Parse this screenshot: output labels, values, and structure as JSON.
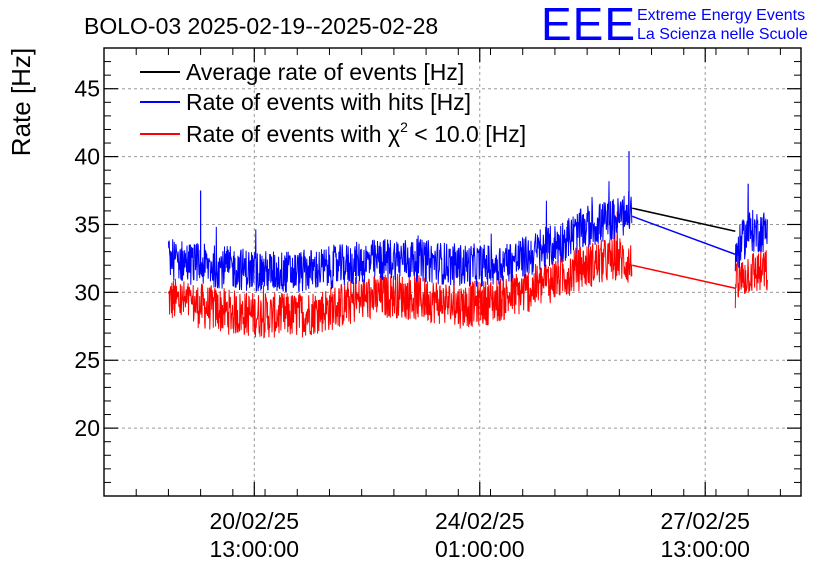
{
  "header": {
    "title": "BOLO-03 2025-02-19--2025-02-28",
    "logo_text": "EEE",
    "org_line1": "Extreme Energy Events",
    "org_line2": "La Scienza nelle Scuole"
  },
  "colors": {
    "average": "#000000",
    "hits": "#0000ff",
    "chi2": "#ff0000",
    "logo": "#0000ff",
    "grid": "#9a9a9a"
  },
  "chart_data": {
    "type": "line",
    "title": "BOLO-03 2025-02-19--2025-02-28",
    "ylabel": "Rate [Hz]",
    "xlabel": "",
    "ylim": [
      15,
      48
    ],
    "yticks": [
      20,
      25,
      30,
      35,
      40,
      45
    ],
    "grid": true,
    "legend_position": "top-left",
    "xlim_days": [
      -1.0,
      9.82
    ],
    "xticks": [
      {
        "day": 1.333,
        "date": "20/02/25",
        "time": "13:00:00"
      },
      {
        "day": 4.833,
        "date": "24/02/25",
        "time": "01:00:00"
      },
      {
        "day": 8.333,
        "date": "27/02/25",
        "time": "13:00:00"
      }
    ],
    "x_axis_start": "2025-02-19",
    "series": [
      {
        "name": "Average rate of events [Hz]",
        "color": "#000000",
        "x_days": [
          7.2,
          8.8
        ],
        "values": [
          36.2,
          34.5
        ]
      },
      {
        "name": "Rate of events with hits [Hz]",
        "color": "#0000ff",
        "x_days": [
          0.0,
          0.5,
          1.0,
          1.5,
          2.0,
          2.5,
          3.0,
          3.5,
          4.0,
          4.5,
          5.0,
          5.5,
          6.0,
          6.5,
          7.0,
          7.2,
          8.8,
          9.0,
          9.3
        ],
        "values": [
          32.5,
          32.0,
          31.8,
          31.5,
          31.5,
          31.8,
          32.2,
          32.5,
          32.3,
          32.0,
          32.0,
          32.5,
          33.5,
          34.8,
          35.5,
          36.0,
          32.8,
          34.5,
          34.5
        ],
        "spikes": [
          {
            "x_days": 0.5,
            "value": 37.5
          },
          {
            "x_days": 7.15,
            "value": 40.4
          },
          {
            "x_days": 9.0,
            "value": 38.0
          }
        ]
      },
      {
        "name": "Rate of events with χ² < 10.0 [Hz]",
        "color": "#ff0000",
        "x_days": [
          0.0,
          0.5,
          1.0,
          1.5,
          2.0,
          2.5,
          3.0,
          3.5,
          4.0,
          4.5,
          5.0,
          5.5,
          6.0,
          6.5,
          7.0,
          7.2,
          8.8,
          9.0,
          9.3
        ],
        "values": [
          29.5,
          29.0,
          28.5,
          28.3,
          28.3,
          28.8,
          29.5,
          29.8,
          29.5,
          29.0,
          29.3,
          30.0,
          31.0,
          32.0,
          32.5,
          32.0,
          30.3,
          31.5,
          31.5
        ]
      }
    ],
    "legend": [
      {
        "label": "Average rate of events [Hz]",
        "color": "#000000"
      },
      {
        "label": "Rate of events with hits [Hz]",
        "color": "#0000ff"
      },
      {
        "label_prefix": "Rate of events with ",
        "label_symbol": "χ",
        "label_sup": "2",
        "label_suffix": " < 10.0 [Hz]",
        "color": "#ff0000"
      }
    ]
  }
}
